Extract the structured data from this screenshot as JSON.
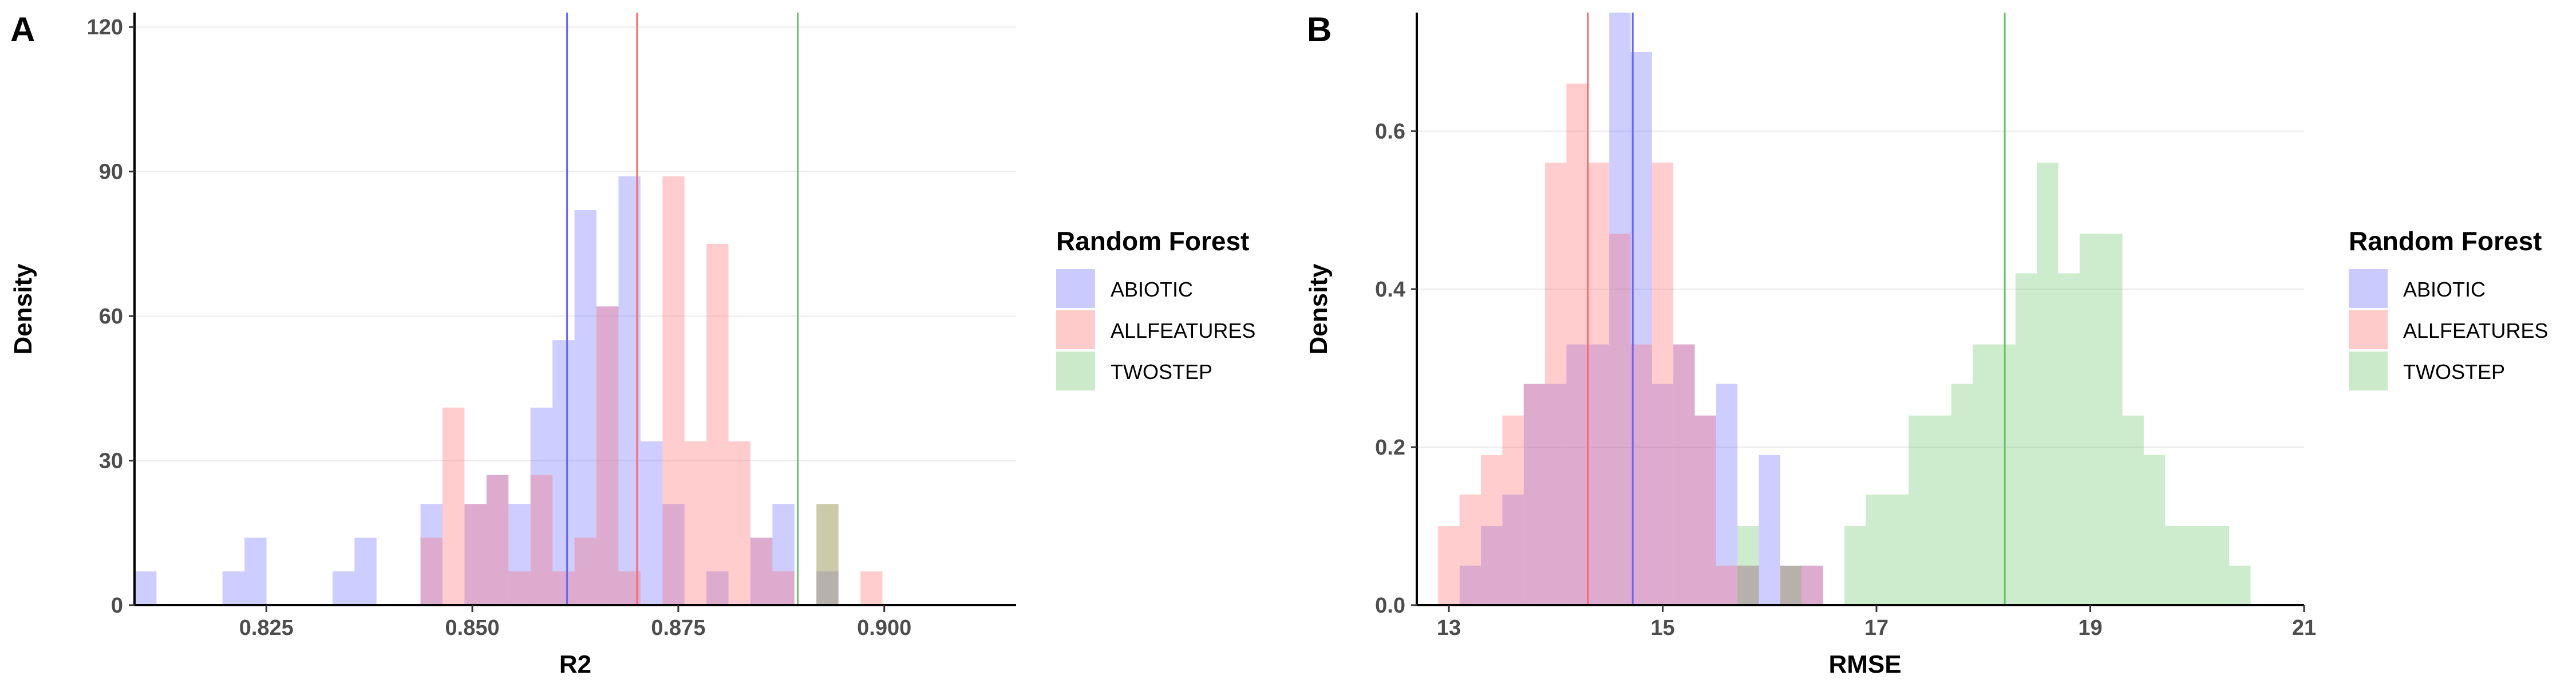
{
  "chart_data": [
    {
      "panel_label": "A",
      "type": "histogram",
      "xlabel": "R2",
      "ylabel": "Density",
      "xlim": [
        0.809,
        0.916
      ],
      "ylim": [
        0,
        123
      ],
      "xticks": [
        "0.825",
        "0.850",
        "0.875",
        "0.900"
      ],
      "yticks": [
        "0",
        "30",
        "60",
        "90",
        "120"
      ],
      "bin_start": 0.809,
      "bin_width": 0.00267,
      "grid": "horizontal",
      "legend": {
        "title": "Random Forest",
        "position": "right"
      },
      "series": [
        {
          "name": "ABIOTIC",
          "color": "#6666FF",
          "counts": [
            7,
            0,
            0,
            0,
            7,
            14,
            0,
            0,
            0,
            7,
            14,
            0,
            0,
            21,
            0,
            21,
            27,
            21,
            41,
            55,
            82,
            62,
            89,
            34,
            21,
            0,
            7,
            0,
            14,
            21,
            0,
            7,
            0,
            0,
            0,
            0,
            0,
            0,
            0,
            0
          ],
          "mean": 0.8615
        },
        {
          "name": "ALLFEATURES",
          "color": "#FF6666",
          "counts": [
            0,
            0,
            0,
            0,
            0,
            0,
            0,
            0,
            0,
            0,
            0,
            0,
            0,
            14,
            41,
            21,
            27,
            7,
            27,
            7,
            14,
            62,
            7,
            0,
            89,
            34,
            75,
            34,
            14,
            7,
            0,
            21,
            0,
            7,
            0,
            0,
            0,
            0,
            0,
            0
          ],
          "mean": 0.87
        },
        {
          "name": "TWOSTEP",
          "color": "#66C266",
          "counts": [
            0,
            0,
            0,
            0,
            0,
            0,
            0,
            0,
            0,
            0,
            0,
            0,
            0,
            0,
            0,
            0,
            0,
            0,
            0,
            0,
            0,
            0,
            0,
            0,
            0,
            0,
            0,
            0,
            0,
            0,
            0,
            21,
            0,
            0,
            0,
            0,
            0,
            0,
            0,
            0
          ],
          "mean": 0.8895
        }
      ]
    },
    {
      "panel_label": "B",
      "type": "histogram",
      "xlabel": "RMSE",
      "ylabel": "Density",
      "xlim": [
        12.7,
        21.0
      ],
      "ylim": [
        0,
        0.75
      ],
      "xticks": [
        "13",
        "15",
        "17",
        "19",
        "21"
      ],
      "yticks": [
        "0.0",
        "0.2",
        "0.4",
        "0.6"
      ],
      "bin_start": 12.9,
      "bin_width": 0.2,
      "grid": "horizontal",
      "legend": {
        "title": "Random Forest",
        "position": "right"
      },
      "series": [
        {
          "name": "ABIOTIC",
          "color": "#6666FF",
          "counts": [
            0,
            0.05,
            0.1,
            0.14,
            0.28,
            0.28,
            0.33,
            0.33,
            0.75,
            0.7,
            0.28,
            0.33,
            0.24,
            0.28,
            0.05,
            0.19,
            0.05,
            0.05,
            0,
            0,
            0,
            0,
            0,
            0,
            0,
            0,
            0,
            0,
            0,
            0,
            0,
            0,
            0,
            0,
            0,
            0,
            0,
            0
          ],
          "mean": 14.72
        },
        {
          "name": "ALLFEATURES",
          "color": "#FF6666",
          "counts": [
            0.1,
            0.14,
            0.19,
            0.24,
            0.28,
            0.56,
            0.66,
            0.56,
            0.47,
            0.33,
            0.56,
            0.33,
            0.24,
            0.05,
            0.05,
            0,
            0.05,
            0.05,
            0,
            0,
            0,
            0,
            0,
            0,
            0,
            0,
            0,
            0,
            0,
            0,
            0,
            0,
            0,
            0,
            0,
            0,
            0,
            0
          ],
          "mean": 14.3
        },
        {
          "name": "TWOSTEP",
          "color": "#66C266",
          "counts": [
            0,
            0,
            0,
            0,
            0,
            0,
            0,
            0,
            0,
            0,
            0,
            0,
            0,
            0,
            0.1,
            0,
            0.05,
            0,
            0,
            0.1,
            0.14,
            0.14,
            0.24,
            0.24,
            0.28,
            0.33,
            0.33,
            0.42,
            0.56,
            0.42,
            0.47,
            0.47,
            0.24,
            0.19,
            0.1,
            0.1,
            0.1,
            0.05
          ],
          "mean": 18.2
        }
      ]
    }
  ]
}
